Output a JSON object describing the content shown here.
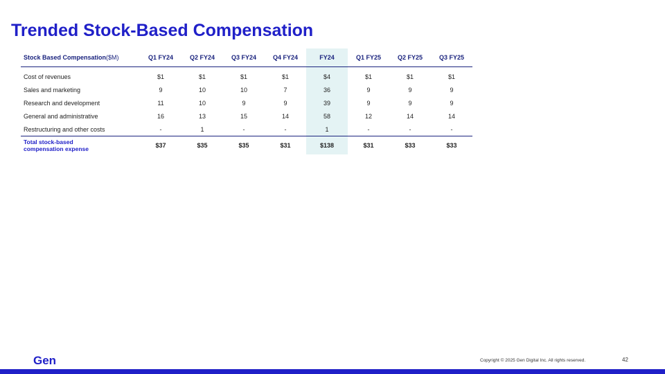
{
  "slide": {
    "title": "Trended Stock-Based Compensation",
    "logo": "Gen",
    "copyright": "Copyright © 2025 Gen Digital Inc. All rights reserved.",
    "page_number": "42"
  },
  "table": {
    "header_label": "Stock Based Compensation",
    "header_unit": "($M)",
    "columns": [
      "Q1 FY24",
      "Q2 FY24",
      "Q3 FY24",
      "Q4 FY24",
      "FY24",
      "Q1 FY25",
      "Q2 FY25",
      "Q3 FY25"
    ],
    "rows": [
      {
        "label": "Cost of revenues",
        "values": [
          "$1",
          "$1",
          "$1",
          "$1",
          "$4",
          "$1",
          "$1",
          "$1"
        ]
      },
      {
        "label": "Sales and marketing",
        "values": [
          "9",
          "10",
          "10",
          "7",
          "36",
          "9",
          "9",
          "9"
        ]
      },
      {
        "label": "Research and development",
        "values": [
          "11",
          "10",
          "9",
          "9",
          "39",
          "9",
          "9",
          "9"
        ]
      },
      {
        "label": "General and administrative",
        "values": [
          "16",
          "13",
          "15",
          "14",
          "58",
          "12",
          "14",
          "14"
        ]
      },
      {
        "label": "Restructuring and other costs",
        "values": [
          "-",
          "1",
          "-",
          "-",
          "1",
          "-",
          "-",
          "-"
        ]
      }
    ],
    "total": {
      "label_line1": "Total stock-based",
      "label_line2": "compensation expense",
      "values": [
        "$37",
        "$35",
        "$35",
        "$31",
        "$138",
        "$31",
        "$33",
        "$33"
      ]
    }
  },
  "colors": {
    "accent": "#2020c8",
    "header_text": "#1a237e",
    "highlight_column": "#e4f3f4"
  }
}
